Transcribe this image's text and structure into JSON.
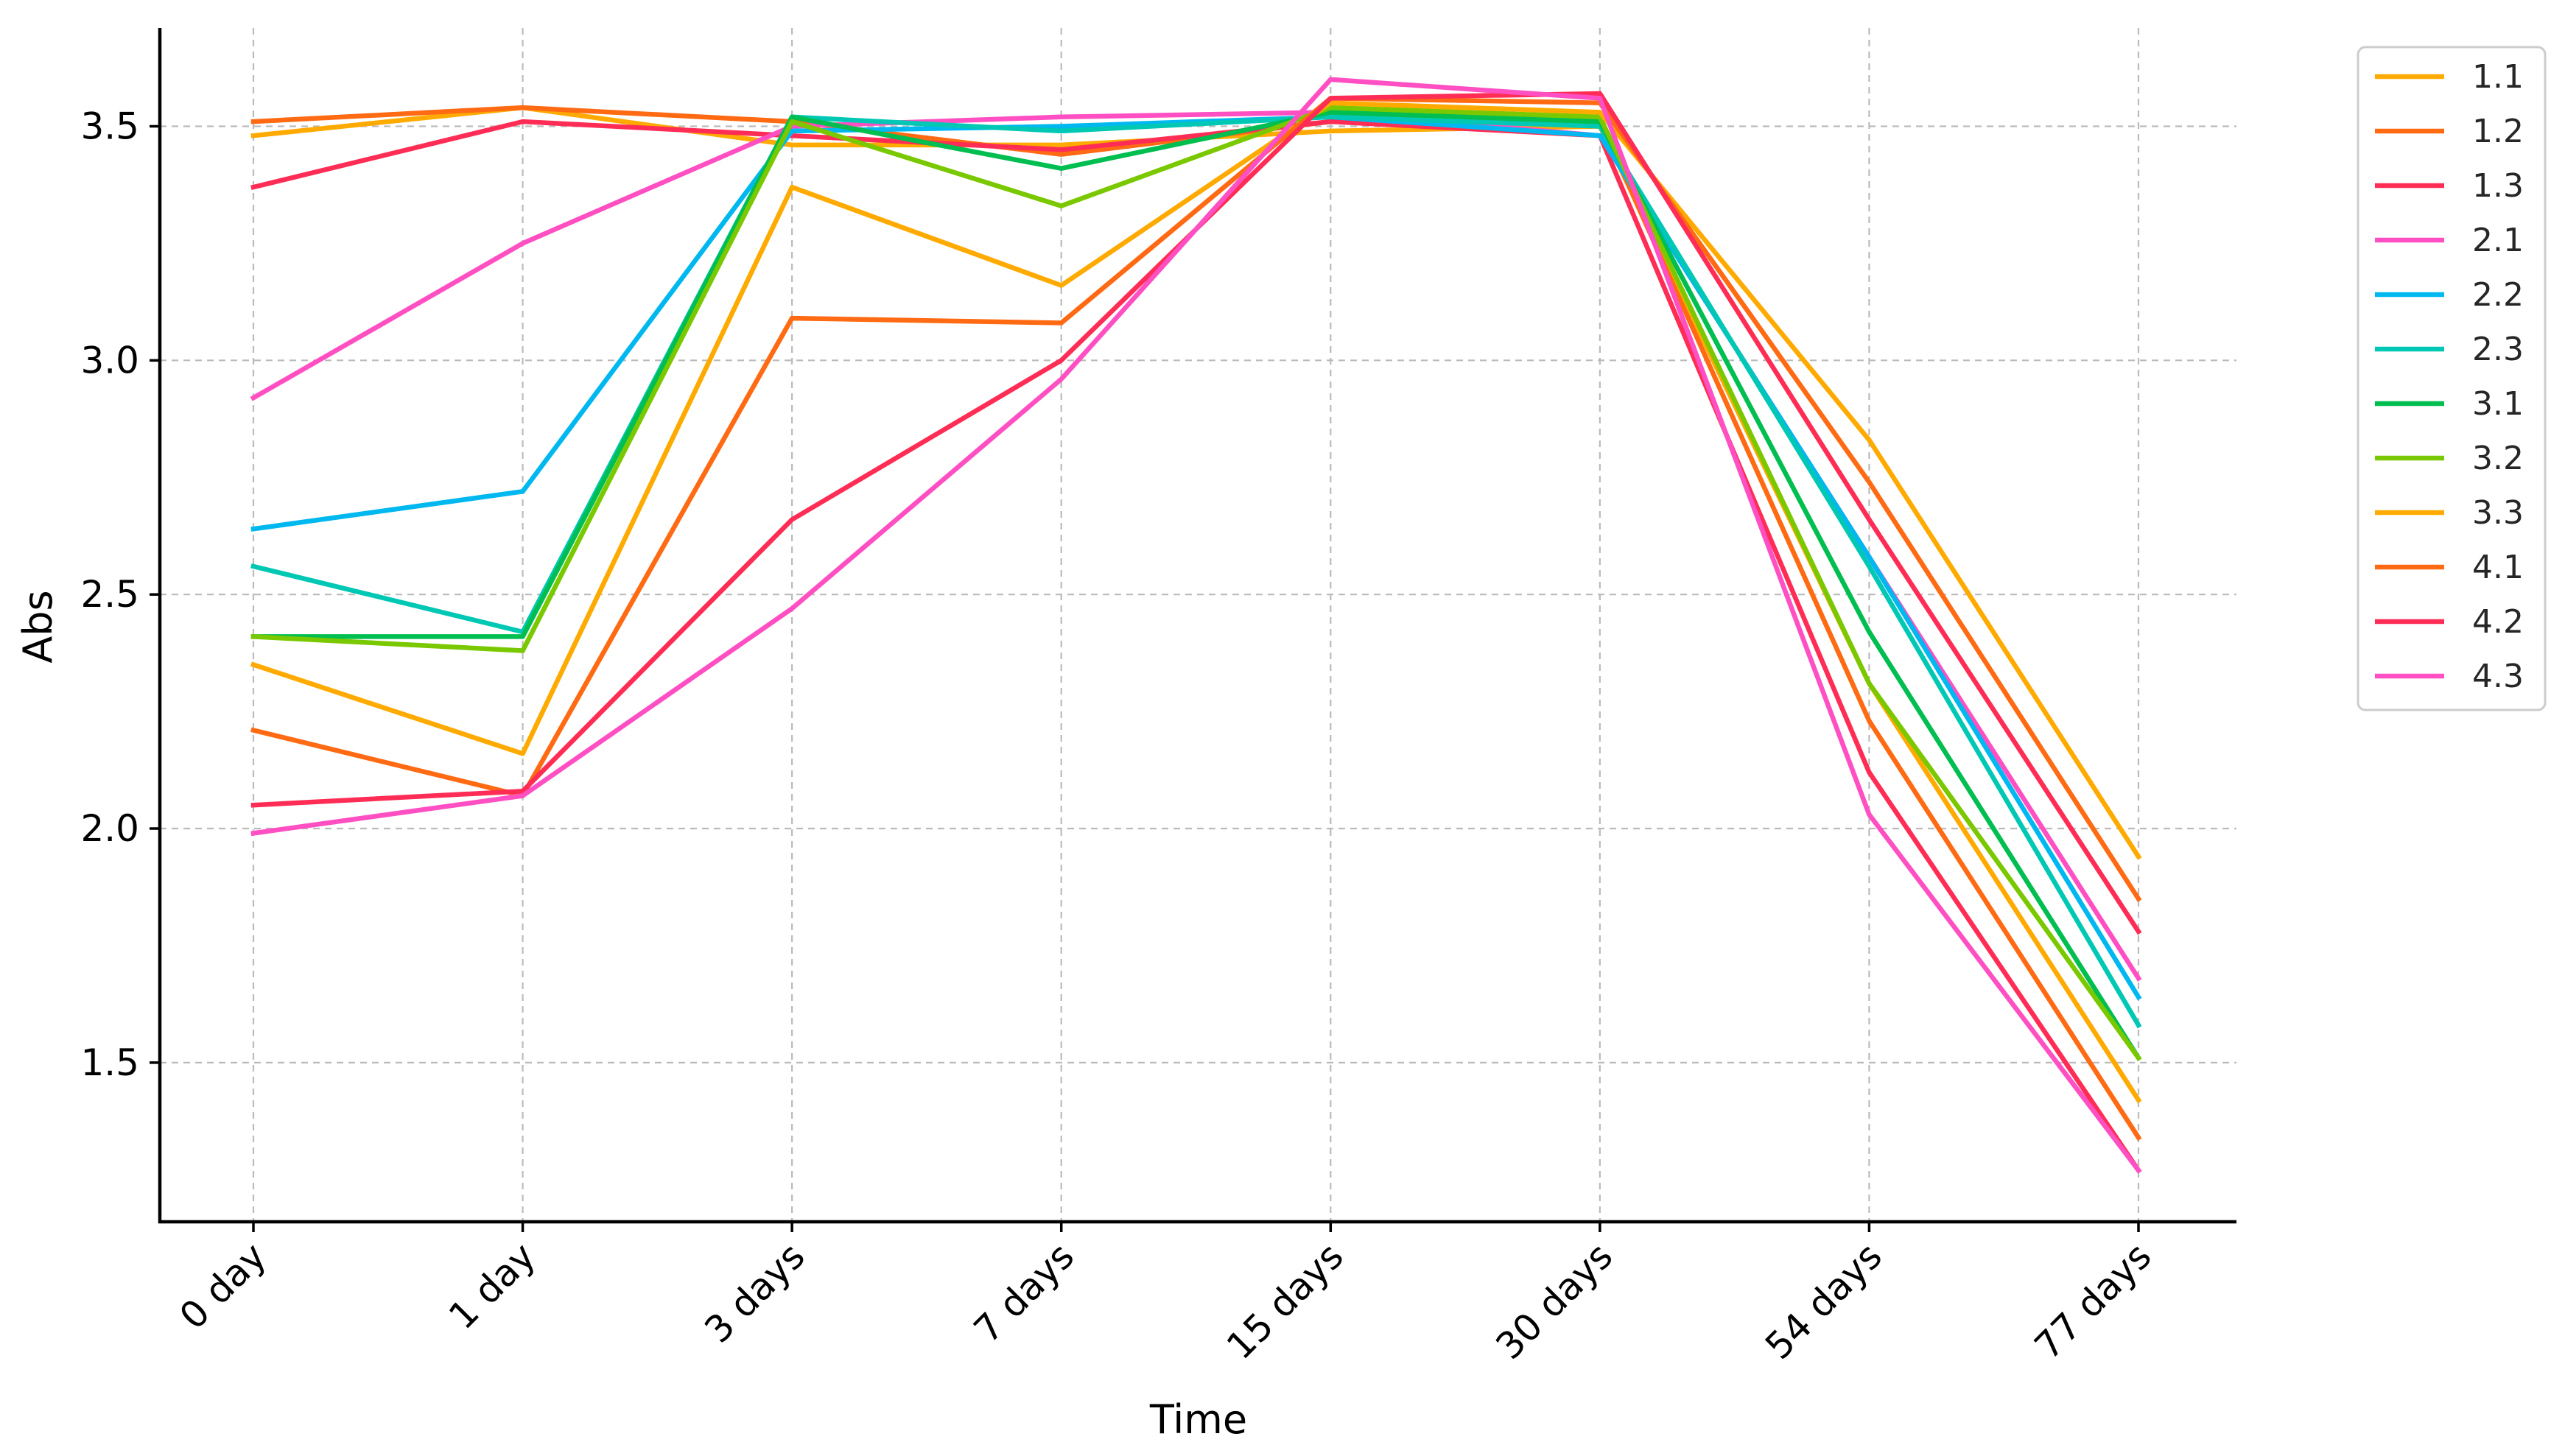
{
  "chart_data": {
    "type": "line",
    "title": "",
    "xlabel": "Time",
    "ylabel": "Abs",
    "categories": [
      "0 day",
      "1 day",
      "3 days",
      "7 days",
      "15 days",
      "30 days",
      "54 days",
      "77 days"
    ],
    "ylim": [
      1.16,
      3.71
    ],
    "yticks": [
      1.5,
      2.0,
      2.5,
      3.0,
      3.5
    ],
    "ytick_labels": [
      "1.5",
      "2.0",
      "2.5",
      "3.0",
      "3.5"
    ],
    "grid": true,
    "legend_position": "right-outside-top",
    "series": [
      {
        "name": "1.1",
        "color": "#ffaa00",
        "values": [
          3.48,
          3.54,
          3.46,
          3.46,
          3.49,
          3.5,
          2.31,
          1.42
        ]
      },
      {
        "name": "1.2",
        "color": "#ff6a13",
        "values": [
          3.51,
          3.54,
          3.51,
          3.44,
          3.51,
          3.51,
          2.23,
          1.34
        ]
      },
      {
        "name": "1.3",
        "color": "#ff2d55",
        "values": [
          3.37,
          3.51,
          3.48,
          3.45,
          3.51,
          3.48,
          2.12,
          1.27
        ]
      },
      {
        "name": "2.1",
        "color": "#ff4fc3",
        "values": [
          2.92,
          3.25,
          3.5,
          3.52,
          3.53,
          3.48,
          2.58,
          1.68
        ]
      },
      {
        "name": "2.2",
        "color": "#00b8f0",
        "values": [
          2.64,
          2.72,
          3.49,
          3.5,
          3.52,
          3.48,
          2.58,
          1.64
        ]
      },
      {
        "name": "2.3",
        "color": "#00c8b4",
        "values": [
          2.56,
          2.42,
          3.52,
          3.49,
          3.52,
          3.5,
          2.56,
          1.58
        ]
      },
      {
        "name": "3.1",
        "color": "#00be50",
        "values": [
          2.41,
          2.41,
          3.52,
          3.41,
          3.53,
          3.51,
          2.42,
          1.51
        ]
      },
      {
        "name": "3.2",
        "color": "#7ac800",
        "values": [
          2.41,
          2.38,
          3.51,
          3.33,
          3.54,
          3.52,
          2.31,
          1.51
        ]
      },
      {
        "name": "3.3",
        "color": "#ffaa00",
        "values": [
          2.35,
          2.16,
          3.37,
          3.16,
          3.55,
          3.53,
          2.83,
          1.94
        ]
      },
      {
        "name": "4.1",
        "color": "#ff6a13",
        "values": [
          2.21,
          2.07,
          3.09,
          3.08,
          3.56,
          3.55,
          2.74,
          1.85
        ]
      },
      {
        "name": "4.2",
        "color": "#ff2d55",
        "values": [
          2.05,
          2.08,
          2.66,
          3.0,
          3.56,
          3.57,
          2.66,
          1.78
        ]
      },
      {
        "name": "4.3",
        "color": "#ff4fc3",
        "values": [
          1.99,
          2.07,
          2.47,
          2.96,
          3.6,
          3.56,
          2.03,
          1.27
        ]
      }
    ]
  }
}
